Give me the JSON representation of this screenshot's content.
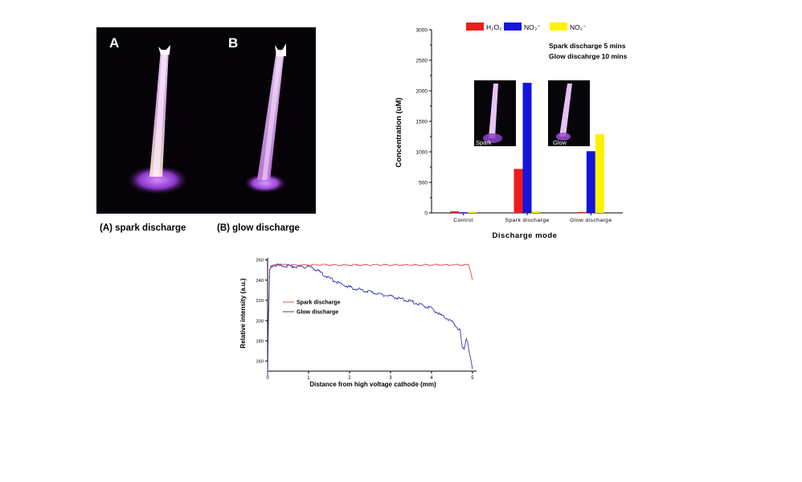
{
  "photos": {
    "a_label": "A",
    "b_label": "B",
    "a_caption": "(A) spark discharge",
    "b_caption": "(B) glow discharge"
  },
  "chart_data": [
    {
      "type": "bar",
      "categories": [
        "Control",
        "Spark discharge",
        "Glow discharge"
      ],
      "series": [
        {
          "name": "H₂O₂",
          "color": "#ee1c1c",
          "values": [
            25,
            720,
            15
          ]
        },
        {
          "name": "NO₃⁻",
          "color": "#1414dd",
          "values": [
            10,
            2130,
            1010
          ]
        },
        {
          "name": "NO₂⁻",
          "color": "#fff200",
          "values": [
            20,
            30,
            1290
          ]
        }
      ],
      "ylabel": "Concentration (uM)",
      "xlabel": "Discharge mode",
      "ylim": [
        0,
        3000
      ],
      "yticks": [
        0,
        500,
        1000,
        1500,
        2000,
        2500,
        3000
      ],
      "annotation_lines": [
        "Spark discharge 5 mins",
        "Glow discahrge 10 mins"
      ],
      "inset_labels": [
        "Spark",
        "Glow"
      ],
      "legend_position": "top"
    },
    {
      "type": "line",
      "series": [
        {
          "name": "Spark discharge",
          "color": "#d9534f",
          "x": [
            0,
            0.02,
            0.05,
            0.08,
            0.1,
            0.2,
            0.5,
            1.0,
            1.5,
            2.0,
            2.5,
            3.0,
            3.5,
            4.0,
            4.5,
            4.9,
            4.95,
            5.0
          ],
          "y": [
            145,
            200,
            250,
            254,
            254,
            255,
            255,
            255,
            255,
            255,
            255,
            255,
            255,
            255,
            255,
            255,
            250,
            240
          ]
        },
        {
          "name": "Glow discharge",
          "color": "#3b3bb0",
          "x": [
            0,
            0.02,
            0.05,
            0.1,
            0.2,
            0.5,
            1.0,
            1.2,
            1.5,
            1.8,
            2.0,
            2.5,
            3.0,
            3.5,
            4.0,
            4.2,
            4.5,
            4.7,
            4.75,
            4.8,
            4.85,
            4.88,
            4.92,
            4.96,
            5.0
          ],
          "y": [
            145,
            200,
            250,
            254,
            255,
            254,
            253,
            250,
            242,
            236,
            233,
            228,
            224,
            219,
            212,
            206,
            199,
            190,
            172,
            173,
            183,
            180,
            170,
            160,
            152
          ]
        }
      ],
      "xlabel": "Distance from high voltage cathode (mm)",
      "ylabel": "Relative intensity (a.u.)",
      "xlim": [
        0,
        5.1
      ],
      "ylim": [
        150,
        262
      ],
      "xticks": [
        0,
        1,
        2,
        3,
        4,
        5
      ],
      "yticks": [
        160,
        180,
        200,
        220,
        240,
        260
      ],
      "legend_position": "center-left"
    }
  ]
}
